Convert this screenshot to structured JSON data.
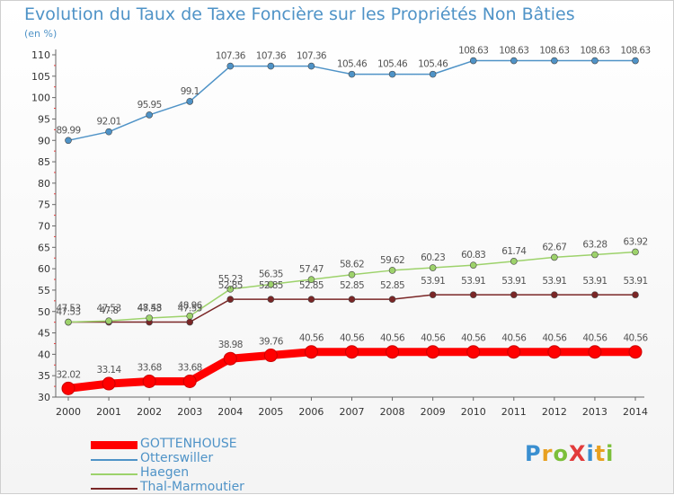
{
  "chart_data": {
    "type": "line",
    "title": "Evolution du Taux de Taxe Foncière sur les Propriétés Non Bâties",
    "unit_label": "(en %)",
    "x": [
      2000,
      2001,
      2002,
      2003,
      2004,
      2005,
      2006,
      2007,
      2008,
      2009,
      2010,
      2011,
      2012,
      2013,
      2014
    ],
    "ylim": [
      30,
      110
    ],
    "yticks": [
      30,
      35,
      40,
      45,
      50,
      55,
      60,
      65,
      70,
      75,
      80,
      85,
      90,
      95,
      100,
      105,
      110
    ],
    "grid": false,
    "legend_position": "bottom-left",
    "series": [
      {
        "name": "GOTTENHOUSE",
        "color": "#ff0000",
        "values": [
          32.02,
          33.14,
          33.68,
          33.68,
          38.98,
          39.76,
          40.56,
          40.56,
          40.56,
          40.56,
          40.56,
          40.56,
          40.56,
          40.56,
          40.56
        ],
        "labels": [
          "32.02",
          "33.14",
          "33.68",
          "33.68",
          "38.98",
          "39.76",
          "40.56",
          "40.56",
          "40.56",
          "40.56",
          "40.56",
          "40.56",
          "40.56",
          "40.56",
          "40.56"
        ]
      },
      {
        "name": "Otterswiller",
        "color": "#4f93c7",
        "values": [
          89.99,
          92.01,
          95.95,
          99.1,
          107.36,
          107.36,
          107.36,
          105.46,
          105.46,
          105.46,
          108.63,
          108.63,
          108.63,
          108.63,
          108.63
        ],
        "labels": [
          "89.99",
          "92.01",
          "95.95",
          "99.1",
          "107.36",
          "107.36",
          "107.36",
          "105.46",
          "105.46",
          "105.46",
          "108.63",
          "108.63",
          "108.63",
          "108.63",
          "108.63"
        ]
      },
      {
        "name": "Haegen",
        "color": "#9dd26b",
        "values": [
          47.53,
          47.8,
          48.48,
          48.96,
          55.23,
          56.35,
          57.47,
          58.62,
          59.62,
          60.23,
          60.83,
          61.74,
          62.67,
          63.28,
          63.92
        ],
        "labels": [
          "47.53",
          "47.8",
          "48.48",
          "48.96",
          "55.23",
          "56.35",
          "57.47",
          "58.62",
          "59.62",
          "60.23",
          "60.83",
          "61.74",
          "62.67",
          "63.28",
          "63.92"
        ]
      },
      {
        "name": "Thal-Marmoutier",
        "color": "#7a2626",
        "values": [
          47.53,
          47.53,
          47.53,
          47.53,
          52.85,
          52.85,
          52.85,
          52.85,
          52.85,
          53.91,
          53.91,
          53.91,
          53.91,
          53.91,
          53.91
        ],
        "labels": [
          "47.53",
          "47.53",
          "47.53",
          "47.53",
          "52.85",
          "52.85",
          "52.85",
          "52.85",
          "52.85",
          "53.91",
          "53.91",
          "53.91",
          "53.91",
          "53.91",
          "53.91"
        ]
      }
    ]
  },
  "logo": {
    "text": "ProXiti",
    "letter_colors": [
      "#3a8fd0",
      "#e8a020",
      "#7cbf3a",
      "#e23b3b",
      "#3a8fd0",
      "#e8a020",
      "#7cbf3a"
    ]
  }
}
